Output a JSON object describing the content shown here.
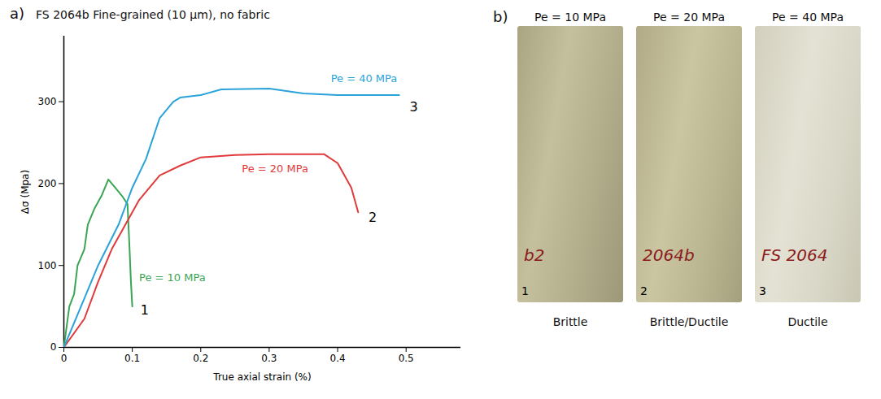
{
  "chart_data": {
    "type": "line",
    "panel_label": "a)",
    "title": "FS 2064b Fine-grained (10 μm), no fabric",
    "x_label": "True axial strain (%)",
    "y_label": "Δσ (Mpa)",
    "xlim": [
      0,
      0.58
    ],
    "ylim": [
      0,
      380
    ],
    "xticks": [
      0,
      0.1,
      0.2,
      0.3,
      0.4,
      0.5
    ],
    "yticks": [
      0,
      100,
      200,
      300
    ],
    "grid": false,
    "series": [
      {
        "name": "Pe = 10 MPa",
        "color": "#3aa655",
        "end_label": "1",
        "x": [
          0,
          0.008,
          0.015,
          0.02,
          0.03,
          0.035,
          0.045,
          0.055,
          0.065,
          0.075,
          0.085,
          0.093,
          0.096,
          0.098,
          0.1
        ],
        "values": [
          0,
          50,
          65,
          100,
          120,
          150,
          170,
          185,
          205,
          195,
          185,
          175,
          120,
          80,
          50
        ]
      },
      {
        "name": "Pe = 20 MPa",
        "color": "#e03a3a",
        "end_label": "2",
        "x": [
          0,
          0.03,
          0.05,
          0.07,
          0.09,
          0.11,
          0.14,
          0.17,
          0.2,
          0.25,
          0.3,
          0.38,
          0.4,
          0.42,
          0.43
        ],
        "values": [
          0,
          35,
          80,
          120,
          150,
          180,
          210,
          222,
          232,
          235,
          236,
          236,
          225,
          195,
          165
        ]
      },
      {
        "name": "Pe = 40 MPa",
        "color": "#2aa3d9",
        "end_label": "3",
        "x": [
          0,
          0.03,
          0.05,
          0.08,
          0.1,
          0.12,
          0.14,
          0.16,
          0.17,
          0.2,
          0.23,
          0.3,
          0.35,
          0.4,
          0.49
        ],
        "values": [
          0,
          60,
          100,
          150,
          195,
          230,
          280,
          300,
          305,
          308,
          315,
          316,
          310,
          308,
          308
        ]
      }
    ]
  },
  "photos": {
    "panel_label": "b)",
    "items": [
      {
        "title": "Pe = 10 MPa",
        "number": "1",
        "marking": "b2",
        "label": "Brittle"
      },
      {
        "title": "Pe = 20 MPa",
        "number": "2",
        "marking": "2064b",
        "label": "Brittle/Ductile"
      },
      {
        "title": "Pe = 40 MPa",
        "number": "3",
        "marking": "FS 2064",
        "label": "Ductile"
      }
    ]
  }
}
